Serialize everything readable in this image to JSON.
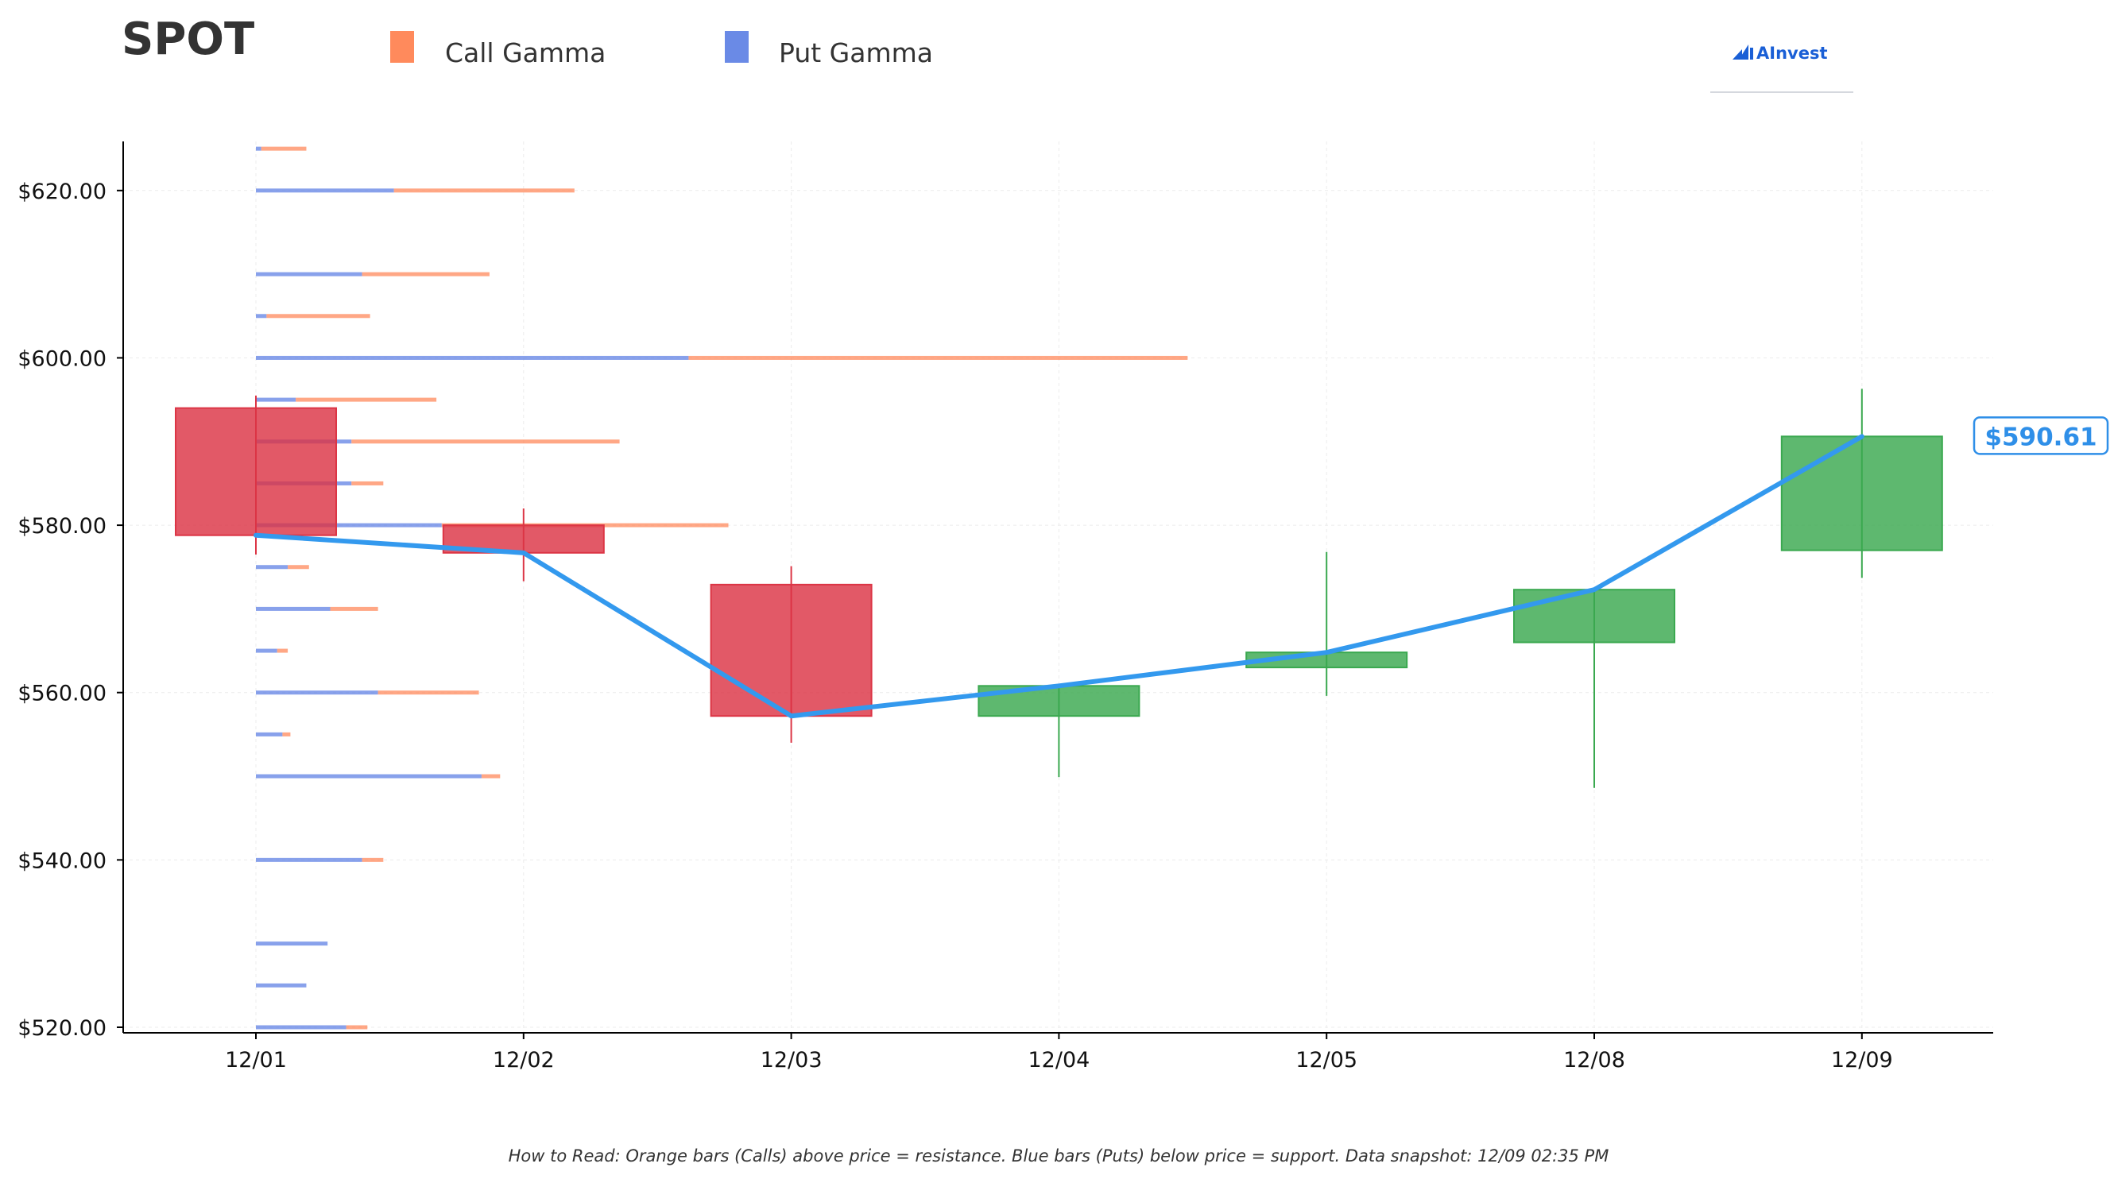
{
  "title": "SPOT",
  "legend": {
    "call_label": "Call Gamma",
    "put_label": "Put Gamma",
    "call_color": "#ff8a5c",
    "put_color": "#6a8ae6"
  },
  "logo": {
    "text": "AInvest",
    "icon": "ainvest-chart-logo-icon"
  },
  "footnote": "How to Read: Orange bars (Calls) above price = resistance. Blue bars (Puts) below price = support. Data snapshot: 12/09 02:35 PM",
  "current_price_label": "$590.61",
  "colors": {
    "up_candle": "#3aa84f",
    "down_candle": "#dc3545",
    "price_line": "#3399ee",
    "axis": "#000000"
  },
  "chart_data": {
    "type": "candlestick",
    "categories": [
      "12/01",
      "12/02",
      "12/03",
      "12/04",
      "12/05",
      "12/08",
      "12/09"
    ],
    "ylim": [
      519,
      626
    ],
    "y_ticks": [
      520,
      540,
      560,
      580,
      600,
      620
    ],
    "y_tick_labels": [
      "$520.00",
      "$540.00",
      "$560.00",
      "$580.00",
      "$600.00",
      "$620.00"
    ],
    "grid": true,
    "legend_position": "top",
    "candles": [
      {
        "date": "12/01",
        "open": 594.0,
        "high": 595.5,
        "low": 576.5,
        "close": 578.8
      },
      {
        "date": "12/02",
        "open": 580.0,
        "high": 582.0,
        "low": 573.3,
        "close": 576.7
      },
      {
        "date": "12/03",
        "open": 572.9,
        "high": 575.1,
        "low": 554.0,
        "close": 557.2
      },
      {
        "date": "12/04",
        "open": 557.2,
        "high": 560.8,
        "low": 549.9,
        "close": 560.8
      },
      {
        "date": "12/05",
        "open": 563.0,
        "high": 576.8,
        "low": 559.6,
        "close": 564.8
      },
      {
        "date": "12/08",
        "open": 566.0,
        "high": 572.4,
        "low": 548.6,
        "close": 572.3
      },
      {
        "date": "12/09",
        "open": 577.0,
        "high": 596.3,
        "low": 573.7,
        "close": 590.61
      }
    ],
    "price_line": {
      "name": "Close",
      "values": [
        578.8,
        576.7,
        557.2,
        560.8,
        564.8,
        572.3,
        590.61
      ]
    },
    "gamma_levels": {
      "strikes": [
        625,
        620,
        610,
        605,
        600,
        595,
        590,
        585,
        580,
        575,
        570,
        565,
        560,
        555,
        550,
        540,
        530,
        525,
        520
      ],
      "put_gamma": [
        0.2,
        5.2,
        4.0,
        0.4,
        16.3,
        1.5,
        3.6,
        3.6,
        7.0,
        1.2,
        2.8,
        0.8,
        4.6,
        1.0,
        8.5,
        4.0,
        2.7,
        1.9,
        3.4
      ],
      "call_gamma": [
        1.7,
        6.8,
        4.8,
        3.9,
        18.8,
        5.3,
        10.1,
        1.2,
        10.8,
        0.8,
        1.8,
        0.4,
        3.8,
        0.3,
        0.7,
        0.8,
        0.0,
        0.0,
        0.8
      ]
    }
  }
}
